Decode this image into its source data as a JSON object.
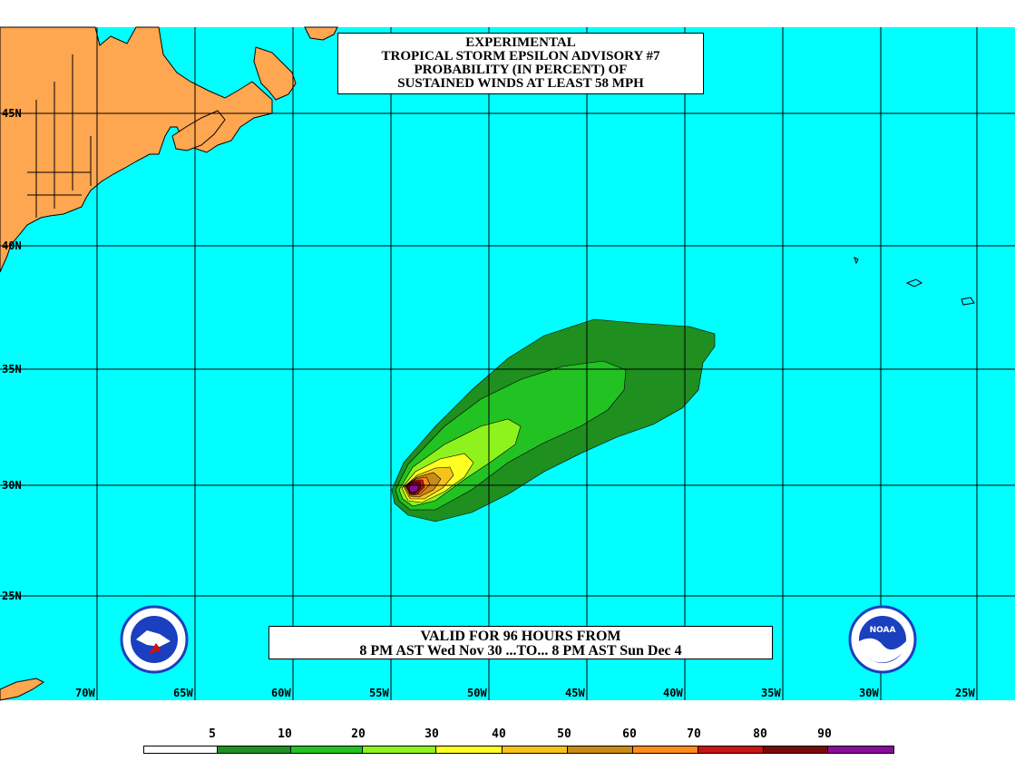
{
  "title": {
    "line1": "EXPERIMENTAL",
    "line2": "TROPICAL STORM EPSILON ADVISORY #7",
    "line3": "PROBABILITY (IN PERCENT) OF",
    "line4": "SUSTAINED WINDS AT LEAST 58 MPH"
  },
  "valid": {
    "line1": "VALID FOR 96 HOURS FROM",
    "line2": "8 PM AST Wed Nov 30 ...TO... 8 PM AST Sun Dec 4"
  },
  "latitudes": [
    "45N",
    "40N",
    "35N",
    "30N",
    "25N"
  ],
  "longitudes": [
    "70W",
    "65W",
    "60W",
    "55W",
    "50W",
    "45W",
    "40W",
    "35W",
    "30W",
    "25W"
  ],
  "legend": {
    "thresholds": [
      "5",
      "10",
      "20",
      "30",
      "40",
      "50",
      "60",
      "70",
      "80",
      "90"
    ],
    "colors": [
      "#ffffff",
      "#1f8f1f",
      "#22c222",
      "#8ef21c",
      "#ffff22",
      "#f6c31a",
      "#c98a16",
      "#ff8c1a",
      "#c81414",
      "#7a0a0a",
      "#8a0c9a"
    ]
  },
  "colors": {
    "ocean": "#00ffff",
    "land": "#ffa650",
    "grid": "#000000"
  },
  "logos": {
    "left": "national-weather-service-logo",
    "right": "noaa-logo",
    "right_text": "NOAA"
  }
}
